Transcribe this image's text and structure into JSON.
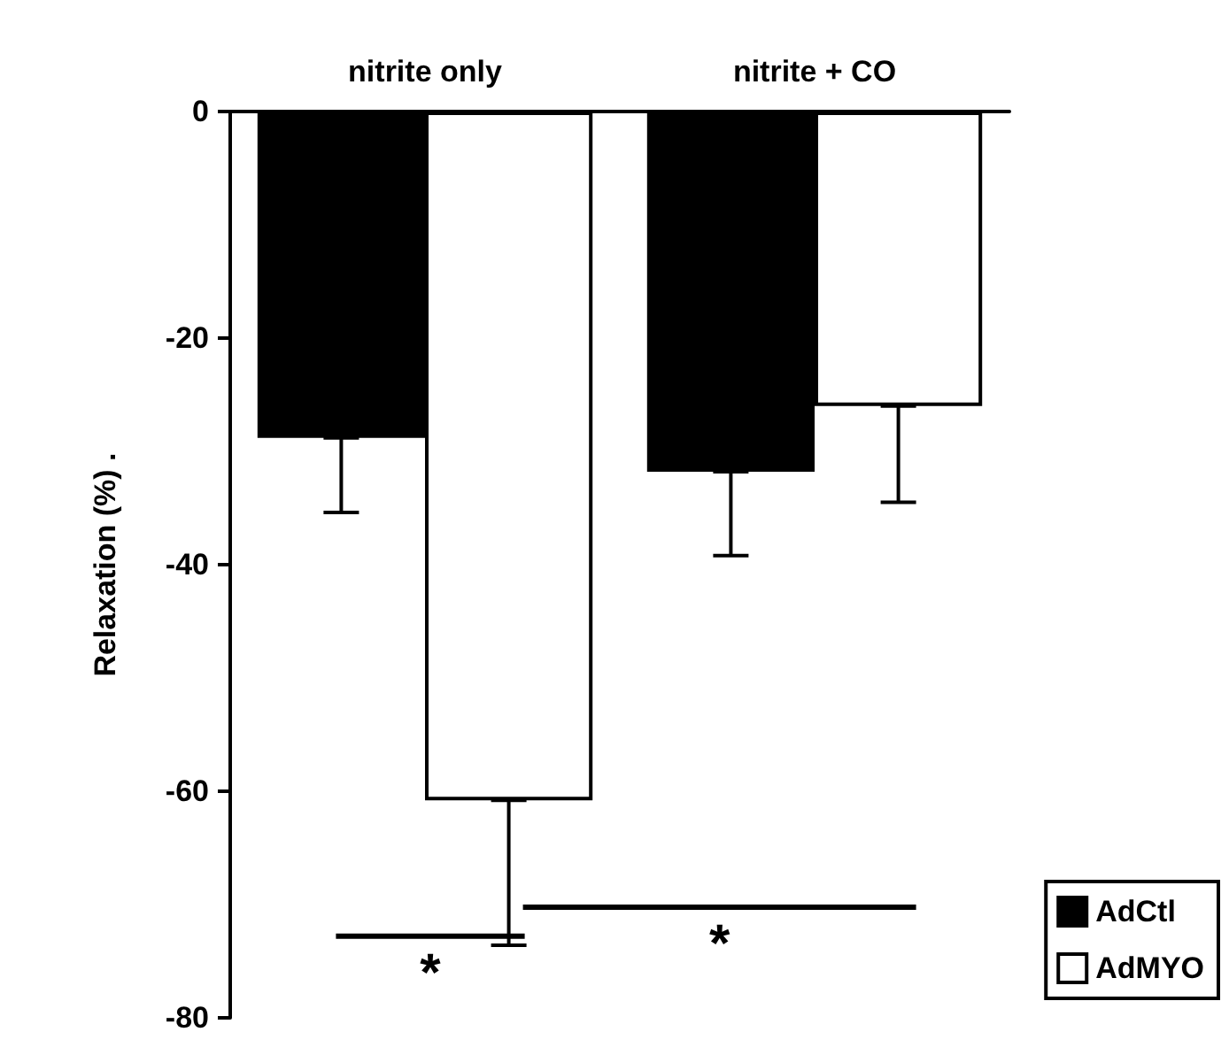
{
  "chart_data": {
    "type": "bar",
    "categories": [
      "nitrite only",
      "nitrite + CO"
    ],
    "ylabel": "Relaxation (%) .",
    "ylim": [
      -80,
      0
    ],
    "yticks": [
      0,
      -20,
      -40,
      -60,
      -80
    ],
    "series": [
      {
        "name": "AdCtl",
        "color": "#000000",
        "values": [
          -28.8,
          -31.8
        ],
        "errors": [
          [
            -35.4,
            -28.8
          ],
          [
            -39.2,
            -31.8
          ]
        ]
      },
      {
        "name": "AdMYO",
        "color": "#ffffff",
        "values": [
          -60.8,
          -26
        ],
        "errors": [
          [
            -73.6,
            -60.8
          ],
          [
            -34.5,
            -26
          ]
        ]
      }
    ],
    "annotations": [
      "*",
      "*"
    ],
    "legend": "bottom right",
    "grid": false
  }
}
